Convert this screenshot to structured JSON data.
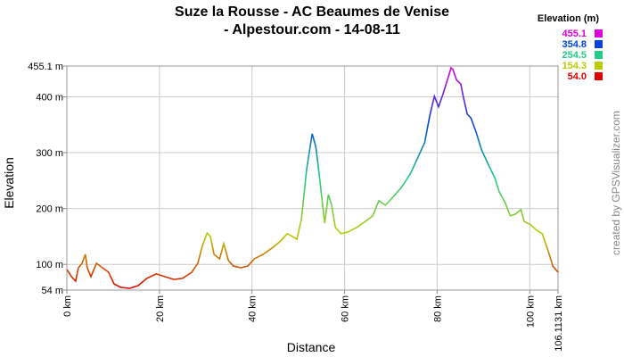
{
  "chart_data": {
    "type": "line",
    "title": "Suze la Rousse - AC Beaumes de Venise - Alpestour.com - 14-08-11",
    "x_label": "Distance",
    "y_label": "Elevation",
    "credit": "created by GPSVisualizer.com",
    "legend": {
      "title": "Elevation (m)",
      "entries": [
        {
          "value": 455.1,
          "label": "455.1",
          "color": "#dd00dd"
        },
        {
          "value": 354.8,
          "label": "354.8",
          "color": "#0044dd"
        },
        {
          "value": 254.5,
          "label": "254.5",
          "color": "#22cc88"
        },
        {
          "value": 154.3,
          "label": "154.3",
          "color": "#bbcc00"
        },
        {
          "value": 54.0,
          "label": "54.0",
          "color": "#dd0000"
        }
      ]
    },
    "x": [
      0,
      1,
      1.9,
      2.5,
      3.3,
      4,
      4.4,
      5.2,
      6.4,
      7.7,
      9,
      10.2,
      11.6,
      13.5,
      15.4,
      17.3,
      19.3,
      21.2,
      23.1,
      25,
      27,
      28.3,
      29.3,
      30.3,
      31,
      31.8,
      33,
      33.9,
      34.9,
      36,
      37.6,
      39.1,
      40.5,
      42.4,
      44.3,
      46.2,
      47.6,
      48.7,
      49.7,
      50.7,
      51.8,
      53,
      53.8,
      54.5,
      55.7,
      56.5,
      57.2,
      58,
      59.2,
      60.7,
      62.6,
      64.5,
      66.1,
      67.4,
      68.8,
      70.3,
      72.3,
      74.2,
      75.7,
      77.3,
      78.4,
      79.4,
      80.3,
      81.3,
      82.5,
      83,
      83.4,
      84.2,
      85.1,
      85.7,
      86.5,
      87.3,
      88.4,
      89.6,
      91.1,
      92.5,
      93.4,
      94.6,
      95.8,
      96.9,
      98.1,
      98.8,
      100.2,
      101.5,
      102.7,
      103.9,
      105,
      106.1
    ],
    "values": [
      91,
      78,
      70,
      94,
      102,
      118,
      94,
      78,
      102,
      94,
      86,
      65,
      59,
      57,
      62,
      75,
      83,
      78,
      73,
      75,
      86,
      102,
      134,
      156,
      150,
      118,
      110,
      137,
      107,
      97,
      94,
      97,
      110,
      118,
      129,
      142,
      155,
      150,
      145,
      182,
      270,
      334,
      310,
      262,
      174,
      225,
      206,
      166,
      155,
      158,
      166,
      177,
      187,
      214,
      206,
      219,
      238,
      262,
      289,
      318,
      366,
      401,
      382,
      406,
      438,
      452,
      449,
      430,
      423,
      398,
      369,
      362,
      337,
      305,
      278,
      254,
      230,
      212,
      187,
      190,
      198,
      177,
      171,
      161,
      155,
      126,
      97,
      86
    ],
    "xlim": [
      0,
      106.1131
    ],
    "xticks": [
      {
        "value": 0,
        "label": "0 km"
      },
      {
        "value": 20,
        "label": "20 km"
      },
      {
        "value": 40,
        "label": "40 km"
      },
      {
        "value": 60,
        "label": "60 km"
      },
      {
        "value": 80,
        "label": "80 km"
      },
      {
        "value": 100,
        "label": "100 km"
      },
      {
        "value": 106.1131,
        "label": "106.1131 km"
      }
    ],
    "ylim": [
      54,
      455.1
    ],
    "yticks": [
      {
        "value": 54,
        "label": "54 m"
      },
      {
        "value": 100,
        "label": "100 m"
      },
      {
        "value": 200,
        "label": "200 m"
      },
      {
        "value": 300,
        "label": "300 m"
      },
      {
        "value": 400,
        "label": "400 m"
      },
      {
        "value": 455.1,
        "label": "455.1 m"
      }
    ],
    "grid": true
  }
}
